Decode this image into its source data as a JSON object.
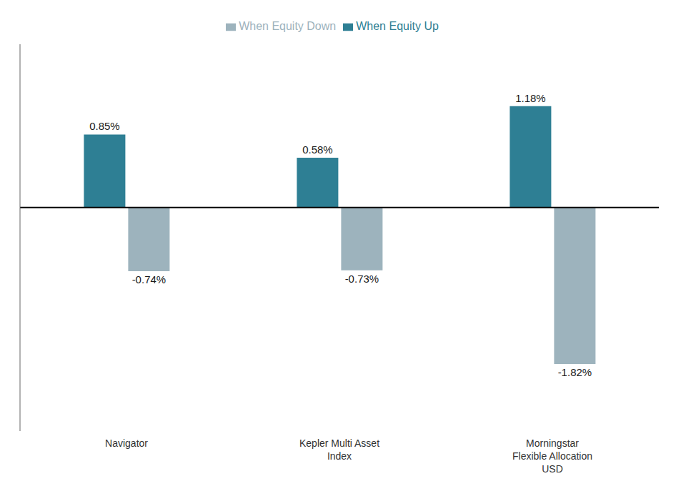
{
  "chart_data": {
    "type": "bar",
    "categories": [
      "Navigator",
      "Kepler Multi Asset\nIndex",
      "Morningstar\nFlexible Allocation\nUSD"
    ],
    "series": [
      {
        "name": "When Equity Up",
        "color": "#2e7f94",
        "values": [
          0.85,
          0.58,
          1.18
        ],
        "value_labels": [
          "0.85%",
          "0.58%",
          "1.18%"
        ]
      },
      {
        "name": "When Equity Down",
        "color": "#9db3bd",
        "values": [
          -0.74,
          -0.73,
          -1.82
        ],
        "value_labels": [
          "-0.74%",
          "-0.73%",
          "-1.82%"
        ]
      }
    ],
    "ylim": [
      -2.6,
      1.9
    ],
    "tick_labels": "x",
    "data_labels": true,
    "grid": false,
    "legend": "top"
  }
}
